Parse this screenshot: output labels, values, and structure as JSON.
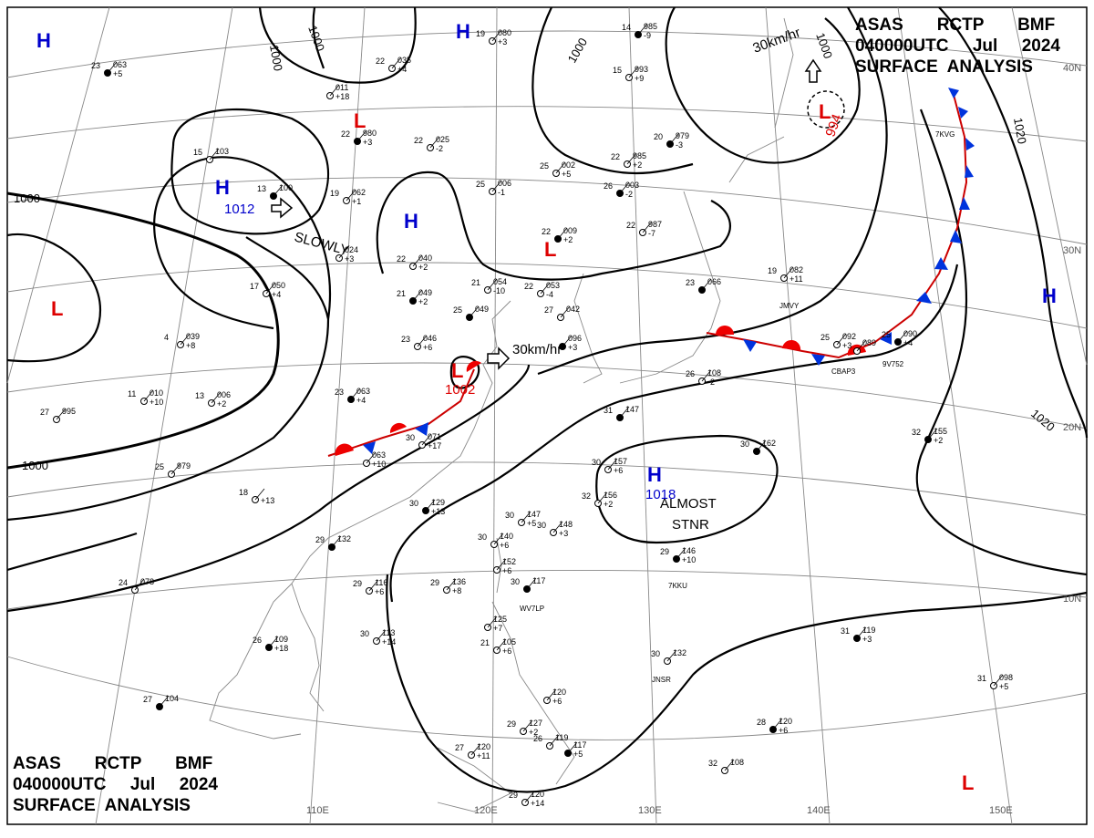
{
  "title": {
    "line1": "ASAS       RCTP       BMF",
    "line2": "040000UTC     Jul     2024",
    "line3": "SURFACE  ANALYSIS"
  },
  "colors": {
    "high": "#0000cc",
    "low": "#dd0000",
    "isobar": "#000000",
    "grid": "#777777"
  },
  "isobar_labels": [
    "1000",
    "1000",
    "1000",
    "1000",
    "1000",
    "1000",
    "1020",
    "1020"
  ],
  "highs": [
    {
      "symbol": "H",
      "pressure": ""
    },
    {
      "symbol": "H",
      "pressure": ""
    },
    {
      "symbol": "H",
      "pressure": "1012"
    },
    {
      "symbol": "H",
      "pressure": ""
    },
    {
      "symbol": "H",
      "pressure": ""
    },
    {
      "symbol": "H",
      "pressure": "1018"
    }
  ],
  "lows": [
    {
      "symbol": "L",
      "pressure": ""
    },
    {
      "symbol": "L",
      "pressure": "994"
    },
    {
      "symbol": "L",
      "pressure": ""
    },
    {
      "symbol": "L",
      "pressure": ""
    },
    {
      "symbol": "L",
      "pressure": "1002"
    },
    {
      "symbol": "L",
      "pressure": ""
    }
  ],
  "annotations": [
    "SLOWLY",
    "30km/hr",
    "30km/hr",
    "ALMOST",
    "STNR"
  ],
  "lon_labels": [
    "110E",
    "120E",
    "130E",
    "140E",
    "150E"
  ],
  "lat_labels": [
    "40N",
    "30N",
    "20N",
    "10N"
  ],
  "stations": [
    {
      "t": "23",
      "p": "063",
      "td": "+5"
    },
    {
      "t": "22",
      "p": "035",
      "td": "+4"
    },
    {
      "t": "19",
      "p": "080",
      "td": "+3"
    },
    {
      "t": "14",
      "p": "985",
      "td": "-9"
    },
    {
      "t": "15",
      "p": "993",
      "td": "+9"
    },
    {
      "t": "",
      "p": "011",
      "td": "+18"
    },
    {
      "t": "22",
      "p": "980",
      "td": "+3"
    },
    {
      "t": "22",
      "p": "025",
      "td": "-2"
    },
    {
      "t": "25",
      "p": "002",
      "td": "+5"
    },
    {
      "t": "20",
      "p": "979",
      "td": "-3"
    },
    {
      "t": "22",
      "p": "985",
      "td": "+2"
    },
    {
      "t": "15",
      "p": "103",
      "td": ""
    },
    {
      "t": "13",
      "p": "100",
      "td": ""
    },
    {
      "t": "19",
      "p": "062",
      "td": "+1"
    },
    {
      "t": "25",
      "p": "006",
      "td": "-1"
    },
    {
      "t": "26",
      "p": "003",
      "td": "-2"
    },
    {
      "t": "22",
      "p": "987",
      "td": "-7"
    },
    {
      "t": "",
      "p": "024",
      "td": "+3"
    },
    {
      "t": "22",
      "p": "009",
      "td": "+2"
    },
    {
      "t": "22",
      "p": "040",
      "td": "+2"
    },
    {
      "t": "17",
      "p": "050",
      "td": "+4"
    },
    {
      "t": "21",
      "p": "049",
      "td": "+2"
    },
    {
      "t": "21",
      "p": "054",
      "td": "-10"
    },
    {
      "t": "22",
      "p": "053",
      "td": "-4"
    },
    {
      "t": "25",
      "p": "049",
      "td": ""
    },
    {
      "t": "27",
      "p": "042",
      "td": ""
    },
    {
      "t": "19",
      "p": "082",
      "td": "+11"
    },
    {
      "t": "23",
      "p": "066",
      "td": ""
    },
    {
      "t": "4",
      "p": "039",
      "td": "+8"
    },
    {
      "t": "23",
      "p": "046",
      "td": "+6"
    },
    {
      "t": "",
      "p": "096",
      "td": "+3"
    },
    {
      "t": "25",
      "p": "092",
      "td": "+3"
    },
    {
      "t": "",
      "p": "089",
      "td": ""
    },
    {
      "t": "25",
      "p": "090",
      "td": "+4"
    },
    {
      "t": "11",
      "p": "010",
      "td": "+10"
    },
    {
      "t": "13",
      "p": "006",
      "td": "+2"
    },
    {
      "t": "23",
      "p": "063",
      "td": "+4"
    },
    {
      "t": "26",
      "p": "108",
      "td": "-2"
    },
    {
      "t": "27",
      "p": "995",
      "td": ""
    },
    {
      "t": "31",
      "p": "147",
      "td": ""
    },
    {
      "t": "30",
      "p": "071",
      "td": "+17"
    },
    {
      "t": "",
      "p": "063",
      "td": "+10"
    },
    {
      "t": "32",
      "p": "155",
      "td": "+2"
    },
    {
      "t": "25",
      "p": "979",
      "td": ""
    },
    {
      "t": "30",
      "p": "157",
      "td": "+6"
    },
    {
      "t": "30",
      "p": "162",
      "td": ""
    },
    {
      "t": "18",
      "p": "",
      "td": "+13"
    },
    {
      "t": "32",
      "p": "156",
      "td": "+2"
    },
    {
      "t": "30",
      "p": "129",
      "td": "+13"
    },
    {
      "t": "30",
      "p": "147",
      "td": "+5"
    },
    {
      "t": "30",
      "p": "148",
      "td": "+3"
    },
    {
      "t": "29",
      "p": "132",
      "td": ""
    },
    {
      "t": "30",
      "p": "140",
      "td": "+6"
    },
    {
      "t": "",
      "p": "152",
      "td": "+6"
    },
    {
      "t": "29",
      "p": "146",
      "td": "+10"
    },
    {
      "t": "29",
      "p": "116",
      "td": "+6"
    },
    {
      "t": "29",
      "p": "136",
      "td": "+8"
    },
    {
      "t": "30",
      "p": "117",
      "td": ""
    },
    {
      "t": "24",
      "p": "078",
      "td": ""
    },
    {
      "t": "",
      "p": "125",
      "td": "+7"
    },
    {
      "t": "31",
      "p": "119",
      "td": "+3"
    },
    {
      "t": "30",
      "p": "113",
      "td": "+14"
    },
    {
      "t": "21",
      "p": "105",
      "td": "+6"
    },
    {
      "t": "26",
      "p": "109",
      "td": "+18"
    },
    {
      "t": "30",
      "p": "132",
      "td": ""
    },
    {
      "t": "31",
      "p": "098",
      "td": "+5"
    },
    {
      "t": "27",
      "p": "104",
      "td": ""
    },
    {
      "t": "",
      "p": "120",
      "td": "+6"
    },
    {
      "t": "29",
      "p": "127",
      "td": "+2"
    },
    {
      "t": "28",
      "p": "120",
      "td": "+6"
    },
    {
      "t": "27",
      "p": "120",
      "td": "+11"
    },
    {
      "t": "26",
      "p": "119",
      "td": ""
    },
    {
      "t": "",
      "p": "117",
      "td": "+5"
    },
    {
      "t": "32",
      "p": "108",
      "td": ""
    },
    {
      "t": "29",
      "p": "120",
      "td": "+14"
    }
  ],
  "ship_ids": [
    "7KVG",
    "JMVY",
    "CBAP3",
    "9V752",
    "WV7LP",
    "7KKU",
    "JNSR"
  ]
}
